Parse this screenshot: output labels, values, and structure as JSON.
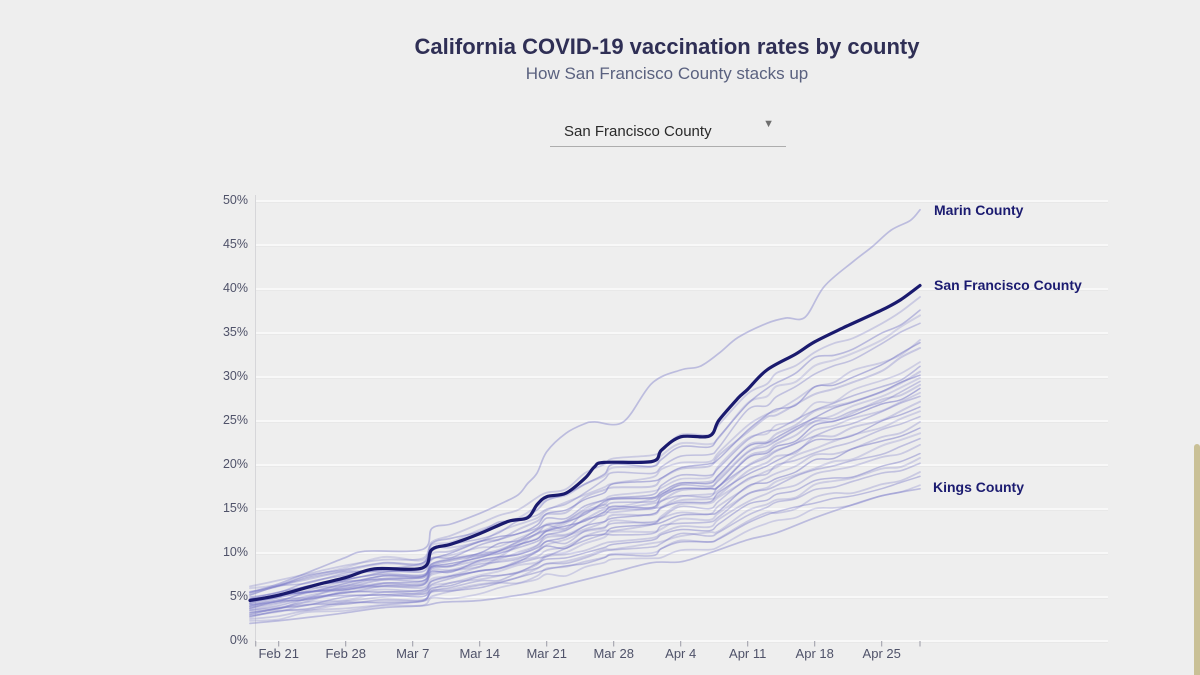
{
  "page": {
    "title": "California COVID-19 vaccination rates by county",
    "subtitle": "How San Francisco County stacks up"
  },
  "dropdown": {
    "value": "San Francisco County",
    "caret": "▼"
  },
  "colors": {
    "background": "#eeeeee",
    "title_text": "#2f2f55",
    "subtitle_text": "#5a617f",
    "axis_text": "#4f5269",
    "grid_light": "#f8f8f8",
    "grid_shadow": "#e3e3e3",
    "spine": "#d6d6d9",
    "tick_mark": "#9a9aa5",
    "line_light": "#7878c8",
    "line_highlight": "#1a1a6e",
    "annotation_text": "#1b1b70",
    "scrollbar": "#c9c096"
  },
  "chart_data": {
    "type": "line",
    "title": "California COVID-19 vaccination rates by county",
    "subtitle": "How San Francisco County stacks up",
    "x_axis": {
      "unit": "date (day index, day 0 = Feb 18)",
      "domain": [
        0,
        70
      ],
      "ticks": [
        {
          "d": 0.6,
          "label": ""
        },
        {
          "d": 3,
          "label": "Feb 21"
        },
        {
          "d": 10,
          "label": "Feb 28"
        },
        {
          "d": 17,
          "label": "Mar 7"
        },
        {
          "d": 24,
          "label": "Mar 14"
        },
        {
          "d": 31,
          "label": "Mar 21"
        },
        {
          "d": 38,
          "label": "Mar 28"
        },
        {
          "d": 45,
          "label": "Apr 4"
        },
        {
          "d": 52,
          "label": "Apr 11"
        },
        {
          "d": 59,
          "label": "Apr 18"
        },
        {
          "d": 66,
          "label": "Apr 25"
        },
        {
          "d": 70,
          "label": ""
        }
      ],
      "grid": false
    },
    "y_axis": {
      "unit": "percent vaccinated",
      "domain": [
        0,
        50
      ],
      "ticks": [
        {
          "v": 0,
          "label": "0%"
        },
        {
          "v": 5,
          "label": "5%"
        },
        {
          "v": 10,
          "label": "10%"
        },
        {
          "v": 15,
          "label": "15%"
        },
        {
          "v": 20,
          "label": "20%"
        },
        {
          "v": 25,
          "label": "25%"
        },
        {
          "v": 30,
          "label": "30%"
        },
        {
          "v": 35,
          "label": "35%"
        },
        {
          "v": 40,
          "label": "40%"
        },
        {
          "v": 45,
          "label": "45%"
        },
        {
          "v": 50,
          "label": "50%"
        }
      ],
      "grid": true
    },
    "legend_position": "right-edge-annotations",
    "series": [
      {
        "name": "Marin County",
        "highlight": false,
        "labeled": true,
        "d": [
          0,
          3,
          7,
          10,
          12,
          18,
          19,
          21,
          24,
          26,
          28,
          29,
          30,
          31,
          33,
          35,
          36,
          39,
          42,
          45,
          47,
          49,
          51,
          54,
          56,
          58,
          60,
          63,
          65,
          67,
          69,
          70
        ],
        "v": [
          5.5,
          6.5,
          8.2,
          9.5,
          10.2,
          10.4,
          12.8,
          13.3,
          14.5,
          15.5,
          16.6,
          17.9,
          19.1,
          21.5,
          23.6,
          24.7,
          24.9,
          24.9,
          29.3,
          30.8,
          31.2,
          32.7,
          34.5,
          36.1,
          36.7,
          36.8,
          40.3,
          43.1,
          44.8,
          46.7,
          47.8,
          49.0
        ]
      },
      {
        "name": "San Francisco County",
        "highlight": true,
        "labeled": true,
        "d": [
          0,
          3,
          7,
          10,
          13,
          18,
          19,
          21,
          24,
          27,
          29,
          30,
          31,
          33,
          35,
          36,
          37,
          42,
          43,
          45,
          48,
          49,
          51,
          52,
          54,
          57,
          59,
          62,
          66,
          68,
          70
        ],
        "v": [
          4.6,
          5.2,
          6.4,
          7.2,
          8.2,
          8.3,
          10.4,
          11.0,
          12.2,
          13.6,
          14.0,
          15.5,
          16.4,
          16.8,
          18.5,
          19.8,
          20.3,
          20.4,
          21.7,
          23.2,
          23.3,
          25.1,
          27.6,
          28.6,
          30.8,
          32.6,
          34.0,
          35.6,
          37.6,
          38.8,
          40.4
        ]
      },
      {
        "name": "Kings County",
        "highlight": false,
        "labeled": true,
        "d": [
          0,
          3,
          7,
          10,
          14,
          18,
          20,
          24,
          28,
          30,
          34,
          38,
          42,
          45,
          48,
          52,
          55,
          59,
          63,
          66,
          70
        ],
        "v": [
          2.0,
          2.3,
          2.8,
          3.2,
          3.8,
          4.0,
          4.4,
          4.6,
          5.2,
          5.6,
          6.7,
          7.8,
          8.9,
          9.0,
          10.0,
          11.5,
          12.3,
          14.0,
          15.5,
          16.5,
          17.3
        ]
      }
    ],
    "background_series": {
      "note": "unlabeled California county lines; start = % on Feb 18, end = % on Apr 29",
      "profile_d": [
        0,
        3,
        6,
        10,
        14,
        18,
        19,
        21,
        24,
        26,
        28,
        30,
        31,
        33,
        35,
        37,
        38,
        42,
        43,
        45,
        48,
        49,
        52,
        54,
        55,
        57,
        59,
        61,
        63,
        66,
        68,
        70
      ],
      "profile_p": [
        0,
        0.025,
        0.055,
        0.085,
        0.105,
        0.11,
        0.165,
        0.18,
        0.215,
        0.235,
        0.26,
        0.3,
        0.33,
        0.345,
        0.39,
        0.425,
        0.44,
        0.45,
        0.48,
        0.52,
        0.525,
        0.555,
        0.67,
        0.71,
        0.73,
        0.765,
        0.82,
        0.845,
        0.87,
        0.92,
        0.955,
        1.0
      ],
      "lines": [
        {
          "s": 6.2,
          "e": 39.1,
          "o": 0.3,
          "w": 1.8
        },
        {
          "s": 5.6,
          "e": 37.6,
          "o": 0.45,
          "w": 1.6
        },
        {
          "s": 6.0,
          "e": 37.0,
          "o": 0.25,
          "w": 2.0
        },
        {
          "s": 5.2,
          "e": 36.1,
          "o": 0.38,
          "w": 1.6
        },
        {
          "s": 5.5,
          "e": 34.2,
          "o": 0.28,
          "w": 1.8
        },
        {
          "s": 4.8,
          "e": 33.9,
          "o": 0.5,
          "w": 1.5
        },
        {
          "s": 5.3,
          "e": 33.3,
          "o": 0.33,
          "w": 2.0
        },
        {
          "s": 4.5,
          "e": 31.7,
          "o": 0.27,
          "w": 1.7
        },
        {
          "s": 5.0,
          "e": 31.2,
          "o": 0.42,
          "w": 1.6
        },
        {
          "s": 4.3,
          "e": 30.6,
          "o": 0.3,
          "w": 2.1
        },
        {
          "s": 4.8,
          "e": 30.2,
          "o": 0.52,
          "w": 1.5
        },
        {
          "s": 4.2,
          "e": 29.9,
          "o": 0.26,
          "w": 1.9
        },
        {
          "s": 4.6,
          "e": 29.5,
          "o": 0.38,
          "w": 1.6
        },
        {
          "s": 4.0,
          "e": 29.1,
          "o": 0.3,
          "w": 2.0
        },
        {
          "s": 4.5,
          "e": 28.7,
          "o": 0.55,
          "w": 1.5
        },
        {
          "s": 3.9,
          "e": 28.2,
          "o": 0.28,
          "w": 1.8
        },
        {
          "s": 4.3,
          "e": 27.8,
          "o": 0.4,
          "w": 1.6
        },
        {
          "s": 3.7,
          "e": 27.2,
          "o": 0.3,
          "w": 2.0
        },
        {
          "s": 4.1,
          "e": 26.6,
          "o": 0.48,
          "w": 1.5
        },
        {
          "s": 3.5,
          "e": 26.1,
          "o": 0.27,
          "w": 1.9
        },
        {
          "s": 3.9,
          "e": 25.5,
          "o": 0.36,
          "w": 1.6
        },
        {
          "s": 3.3,
          "e": 24.9,
          "o": 0.3,
          "w": 1.8
        },
        {
          "s": 3.7,
          "e": 24.2,
          "o": 0.5,
          "w": 1.5
        },
        {
          "s": 3.1,
          "e": 23.6,
          "o": 0.26,
          "w": 2.0
        },
        {
          "s": 3.5,
          "e": 23.0,
          "o": 0.4,
          "w": 1.6
        },
        {
          "s": 2.9,
          "e": 22.3,
          "o": 0.3,
          "w": 1.8
        },
        {
          "s": 3.2,
          "e": 21.3,
          "o": 0.45,
          "w": 1.5
        },
        {
          "s": 2.7,
          "e": 20.8,
          "o": 0.27,
          "w": 1.9
        },
        {
          "s": 3.0,
          "e": 20.2,
          "o": 0.38,
          "w": 1.6
        },
        {
          "s": 2.5,
          "e": 19.2,
          "o": 0.3,
          "w": 1.8
        },
        {
          "s": 2.8,
          "e": 18.7,
          "o": 0.42,
          "w": 1.5
        },
        {
          "s": 2.3,
          "e": 17.7,
          "o": 0.28,
          "w": 1.7
        }
      ]
    },
    "annotations": [
      {
        "label": "Marin County"
      },
      {
        "label": "San Francisco County"
      },
      {
        "label": "Kings County"
      }
    ]
  }
}
